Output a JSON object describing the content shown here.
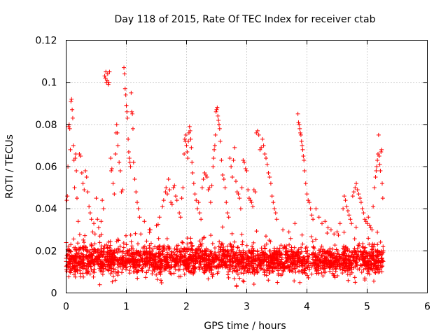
{
  "chart_data": {
    "type": "scatter",
    "title": "Day 118 of 2015, Rate Of TEC Index for receiver ctab",
    "xlabel": "GPS time / hours",
    "ylabel": "ROTI / TECUs",
    "xlim": [
      0,
      6
    ],
    "ylim": [
      0,
      0.12
    ],
    "xticks": [
      0,
      1,
      2,
      3,
      4,
      5,
      6
    ],
    "xtick_labels": [
      "0",
      "1",
      "2",
      "3",
      "4",
      "5",
      "6"
    ],
    "yticks": [
      0,
      0.02,
      0.04,
      0.06,
      0.08,
      0.1,
      0.12
    ],
    "ytick_labels": [
      "0",
      "0.02",
      "0.04",
      "0.06",
      "0.08",
      "0.1",
      "0.12"
    ],
    "grid": true,
    "marker": "+",
    "series": [
      {
        "name": "ROTI",
        "color": "#ff0000",
        "points": [
          [
            0.0,
            0.015
          ],
          [
            0.01,
            0.044
          ],
          [
            0.02,
            0.046
          ],
          [
            0.03,
            0.06
          ],
          [
            0.04,
            0.079
          ],
          [
            0.05,
            0.08
          ],
          [
            0.06,
            0.078
          ],
          [
            0.07,
            0.068
          ],
          [
            0.08,
            0.091
          ],
          [
            0.09,
            0.092
          ],
          [
            0.1,
            0.087
          ],
          [
            0.11,
            0.083
          ],
          [
            0.12,
            0.07
          ],
          [
            0.13,
            0.063
          ],
          [
            0.14,
            0.05
          ],
          [
            0.15,
            0.064
          ],
          [
            0.16,
            0.066
          ],
          [
            0.17,
            0.058
          ],
          [
            0.18,
            0.045
          ],
          [
            0.2,
            0.034
          ],
          [
            0.22,
            0.066
          ],
          [
            0.24,
            0.065
          ],
          [
            0.26,
            0.057
          ],
          [
            0.28,
            0.052
          ],
          [
            0.3,
            0.049
          ],
          [
            0.32,
            0.058
          ],
          [
            0.34,
            0.055
          ],
          [
            0.36,
            0.048
          ],
          [
            0.38,
            0.041
          ],
          [
            0.4,
            0.038
          ],
          [
            0.42,
            0.035
          ],
          [
            0.44,
            0.029
          ],
          [
            0.46,
            0.033
          ],
          [
            0.48,
            0.028
          ],
          [
            0.5,
            0.045
          ],
          [
            0.52,
            0.035
          ],
          [
            0.54,
            0.031
          ],
          [
            0.56,
            0.027
          ],
          [
            0.58,
            0.034
          ],
          [
            0.6,
            0.044
          ],
          [
            0.62,
            0.04
          ],
          [
            0.64,
            0.103
          ],
          [
            0.65,
            0.102
          ],
          [
            0.66,
            0.105
          ],
          [
            0.67,
            0.1
          ],
          [
            0.68,
            0.101
          ],
          [
            0.69,
            0.104
          ],
          [
            0.7,
            0.099
          ],
          [
            0.71,
            0.1
          ],
          [
            0.72,
            0.105
          ],
          [
            0.74,
            0.064
          ],
          [
            0.75,
            0.058
          ],
          [
            0.76,
            0.059
          ],
          [
            0.78,
            0.052
          ],
          [
            0.8,
            0.047
          ],
          [
            0.82,
            0.066
          ],
          [
            0.83,
            0.076
          ],
          [
            0.84,
            0.08
          ],
          [
            0.85,
            0.076
          ],
          [
            0.86,
            0.07
          ],
          [
            0.88,
            0.062
          ],
          [
            0.9,
            0.058
          ],
          [
            0.92,
            0.048
          ],
          [
            0.94,
            0.049
          ],
          [
            0.96,
            0.107
          ],
          [
            0.97,
            0.104
          ],
          [
            0.98,
            0.097
          ],
          [
            0.99,
            0.094
          ],
          [
            1.0,
            0.089
          ],
          [
            1.01,
            0.086
          ],
          [
            1.02,
            0.083
          ],
          [
            1.03,
            0.073
          ],
          [
            1.04,
            0.067
          ],
          [
            1.05,
            0.064
          ],
          [
            1.06,
            0.062
          ],
          [
            1.07,
            0.06
          ],
          [
            1.08,
            0.095
          ],
          [
            1.09,
            0.086
          ],
          [
            1.1,
            0.085
          ],
          [
            1.11,
            0.078
          ],
          [
            1.12,
            0.062
          ],
          [
            1.14,
            0.054
          ],
          [
            1.16,
            0.048
          ],
          [
            1.18,
            0.043
          ],
          [
            1.2,
            0.04
          ],
          [
            1.22,
            0.036
          ],
          [
            1.24,
            0.028
          ],
          [
            1.3,
            0.034
          ],
          [
            1.4,
            0.03
          ],
          [
            1.5,
            0.032
          ],
          [
            1.55,
            0.036
          ],
          [
            1.6,
            0.041
          ],
          [
            1.62,
            0.044
          ],
          [
            1.65,
            0.048
          ],
          [
            1.66,
            0.05
          ],
          [
            1.68,
            0.047
          ],
          [
            1.7,
            0.054
          ],
          [
            1.72,
            0.049
          ],
          [
            1.74,
            0.043
          ],
          [
            1.76,
            0.042
          ],
          [
            1.78,
            0.05
          ],
          [
            1.8,
            0.051
          ],
          [
            1.82,
            0.046
          ],
          [
            1.84,
            0.044
          ],
          [
            1.88,
            0.038
          ],
          [
            1.9,
            0.036
          ],
          [
            1.92,
            0.045
          ],
          [
            1.94,
            0.05
          ],
          [
            1.96,
            0.066
          ],
          [
            1.97,
            0.073
          ],
          [
            1.98,
            0.072
          ],
          [
            1.99,
            0.075
          ],
          [
            2.0,
            0.07
          ],
          [
            2.01,
            0.067
          ],
          [
            2.02,
            0.064
          ],
          [
            2.03,
            0.072
          ],
          [
            2.04,
            0.076
          ],
          [
            2.05,
            0.079
          ],
          [
            2.06,
            0.077
          ],
          [
            2.07,
            0.073
          ],
          [
            2.08,
            0.069
          ],
          [
            2.09,
            0.062
          ],
          [
            2.1,
            0.057
          ],
          [
            2.12,
            0.052
          ],
          [
            2.14,
            0.047
          ],
          [
            2.16,
            0.044
          ],
          [
            2.18,
            0.04
          ],
          [
            2.2,
            0.043
          ],
          [
            2.22,
            0.038
          ],
          [
            2.24,
            0.035
          ],
          [
            2.26,
            0.05
          ],
          [
            2.28,
            0.054
          ],
          [
            2.3,
            0.057
          ],
          [
            2.32,
            0.056
          ],
          [
            2.34,
            0.055
          ],
          [
            2.36,
            0.049
          ],
          [
            2.38,
            0.05
          ],
          [
            2.4,
            0.043
          ],
          [
            2.42,
            0.051
          ],
          [
            2.44,
            0.06
          ],
          [
            2.45,
            0.064
          ],
          [
            2.46,
            0.068
          ],
          [
            2.47,
            0.07
          ],
          [
            2.48,
            0.075
          ],
          [
            2.49,
            0.086
          ],
          [
            2.5,
            0.087
          ],
          [
            2.51,
            0.088
          ],
          [
            2.52,
            0.084
          ],
          [
            2.53,
            0.082
          ],
          [
            2.54,
            0.08
          ],
          [
            2.55,
            0.078
          ],
          [
            2.56,
            0.072
          ],
          [
            2.58,
            0.063
          ],
          [
            2.6,
            0.056
          ],
          [
            2.62,
            0.054
          ],
          [
            2.64,
            0.05
          ],
          [
            2.66,
            0.043
          ],
          [
            2.68,
            0.038
          ],
          [
            2.7,
            0.036
          ],
          [
            2.72,
            0.064
          ],
          [
            2.74,
            0.06
          ],
          [
            2.76,
            0.055
          ],
          [
            2.78,
            0.063
          ],
          [
            2.8,
            0.069
          ],
          [
            2.82,
            0.053
          ],
          [
            2.84,
            0.048
          ],
          [
            2.86,
            0.047
          ],
          [
            2.88,
            0.045
          ],
          [
            2.9,
            0.04
          ],
          [
            2.92,
            0.05
          ],
          [
            2.94,
            0.063
          ],
          [
            2.96,
            0.062
          ],
          [
            2.98,
            0.059
          ],
          [
            3.0,
            0.058
          ],
          [
            3.02,
            0.049
          ],
          [
            3.04,
            0.045
          ],
          [
            3.06,
            0.044
          ],
          [
            3.08,
            0.043
          ],
          [
            3.1,
            0.041
          ],
          [
            3.12,
            0.049
          ],
          [
            3.14,
            0.048
          ],
          [
            3.16,
            0.076
          ],
          [
            3.18,
            0.077
          ],
          [
            3.2,
            0.075
          ],
          [
            3.22,
            0.068
          ],
          [
            3.24,
            0.069
          ],
          [
            3.26,
            0.073
          ],
          [
            3.28,
            0.07
          ],
          [
            3.3,
            0.066
          ],
          [
            3.32,
            0.064
          ],
          [
            3.34,
            0.061
          ],
          [
            3.36,
            0.057
          ],
          [
            3.38,
            0.055
          ],
          [
            3.4,
            0.052
          ],
          [
            3.42,
            0.046
          ],
          [
            3.44,
            0.043
          ],
          [
            3.46,
            0.04
          ],
          [
            3.48,
            0.038
          ],
          [
            3.5,
            0.035
          ],
          [
            3.6,
            0.03
          ],
          [
            3.7,
            0.029
          ],
          [
            3.8,
            0.033
          ],
          [
            3.85,
            0.085
          ],
          [
            3.86,
            0.081
          ],
          [
            3.87,
            0.08
          ],
          [
            3.88,
            0.078
          ],
          [
            3.89,
            0.076
          ],
          [
            3.9,
            0.075
          ],
          [
            3.91,
            0.072
          ],
          [
            3.92,
            0.07
          ],
          [
            3.93,
            0.068
          ],
          [
            3.94,
            0.065
          ],
          [
            3.95,
            0.063
          ],
          [
            3.96,
            0.058
          ],
          [
            3.98,
            0.052
          ],
          [
            4.0,
            0.047
          ],
          [
            4.02,
            0.044
          ],
          [
            4.04,
            0.043
          ],
          [
            4.06,
            0.04
          ],
          [
            4.08,
            0.037
          ],
          [
            4.1,
            0.035
          ],
          [
            4.15,
            0.04
          ],
          [
            4.2,
            0.036
          ],
          [
            4.25,
            0.033
          ],
          [
            4.3,
            0.034
          ],
          [
            4.35,
            0.031
          ],
          [
            4.4,
            0.03
          ],
          [
            4.45,
            0.028
          ],
          [
            4.5,
            0.029
          ],
          [
            4.55,
            0.033
          ],
          [
            4.6,
            0.04
          ],
          [
            4.62,
            0.046
          ],
          [
            4.64,
            0.044
          ],
          [
            4.66,
            0.041
          ],
          [
            4.68,
            0.039
          ],
          [
            4.7,
            0.037
          ],
          [
            4.72,
            0.035
          ],
          [
            4.74,
            0.033
          ],
          [
            4.76,
            0.046
          ],
          [
            4.78,
            0.048
          ],
          [
            4.8,
            0.05
          ],
          [
            4.82,
            0.052
          ],
          [
            4.84,
            0.049
          ],
          [
            4.86,
            0.047
          ],
          [
            4.88,
            0.045
          ],
          [
            4.9,
            0.043
          ],
          [
            4.92,
            0.04
          ],
          [
            4.94,
            0.038
          ],
          [
            4.96,
            0.035
          ],
          [
            4.98,
            0.034
          ],
          [
            5.0,
            0.033
          ],
          [
            5.02,
            0.036
          ],
          [
            5.04,
            0.032
          ],
          [
            5.06,
            0.031
          ],
          [
            5.08,
            0.03
          ],
          [
            5.1,
            0.041
          ],
          [
            5.12,
            0.05
          ],
          [
            5.14,
            0.055
          ],
          [
            5.15,
            0.058
          ],
          [
            5.16,
            0.06
          ],
          [
            5.17,
            0.063
          ],
          [
            5.18,
            0.066
          ],
          [
            5.19,
            0.075
          ],
          [
            5.2,
            0.065
          ],
          [
            5.21,
            0.061
          ],
          [
            5.22,
            0.058
          ],
          [
            5.23,
            0.067
          ],
          [
            5.24,
            0.068
          ],
          [
            5.25,
            0.052
          ],
          [
            5.26,
            0.045
          ]
        ],
        "baseline_band": {
          "x_range": [
            0.0,
            5.27
          ],
          "typical_y_range": [
            0.006,
            0.025
          ],
          "minimum_y": 0.003,
          "approx_point_count": 2600
        }
      }
    ]
  }
}
